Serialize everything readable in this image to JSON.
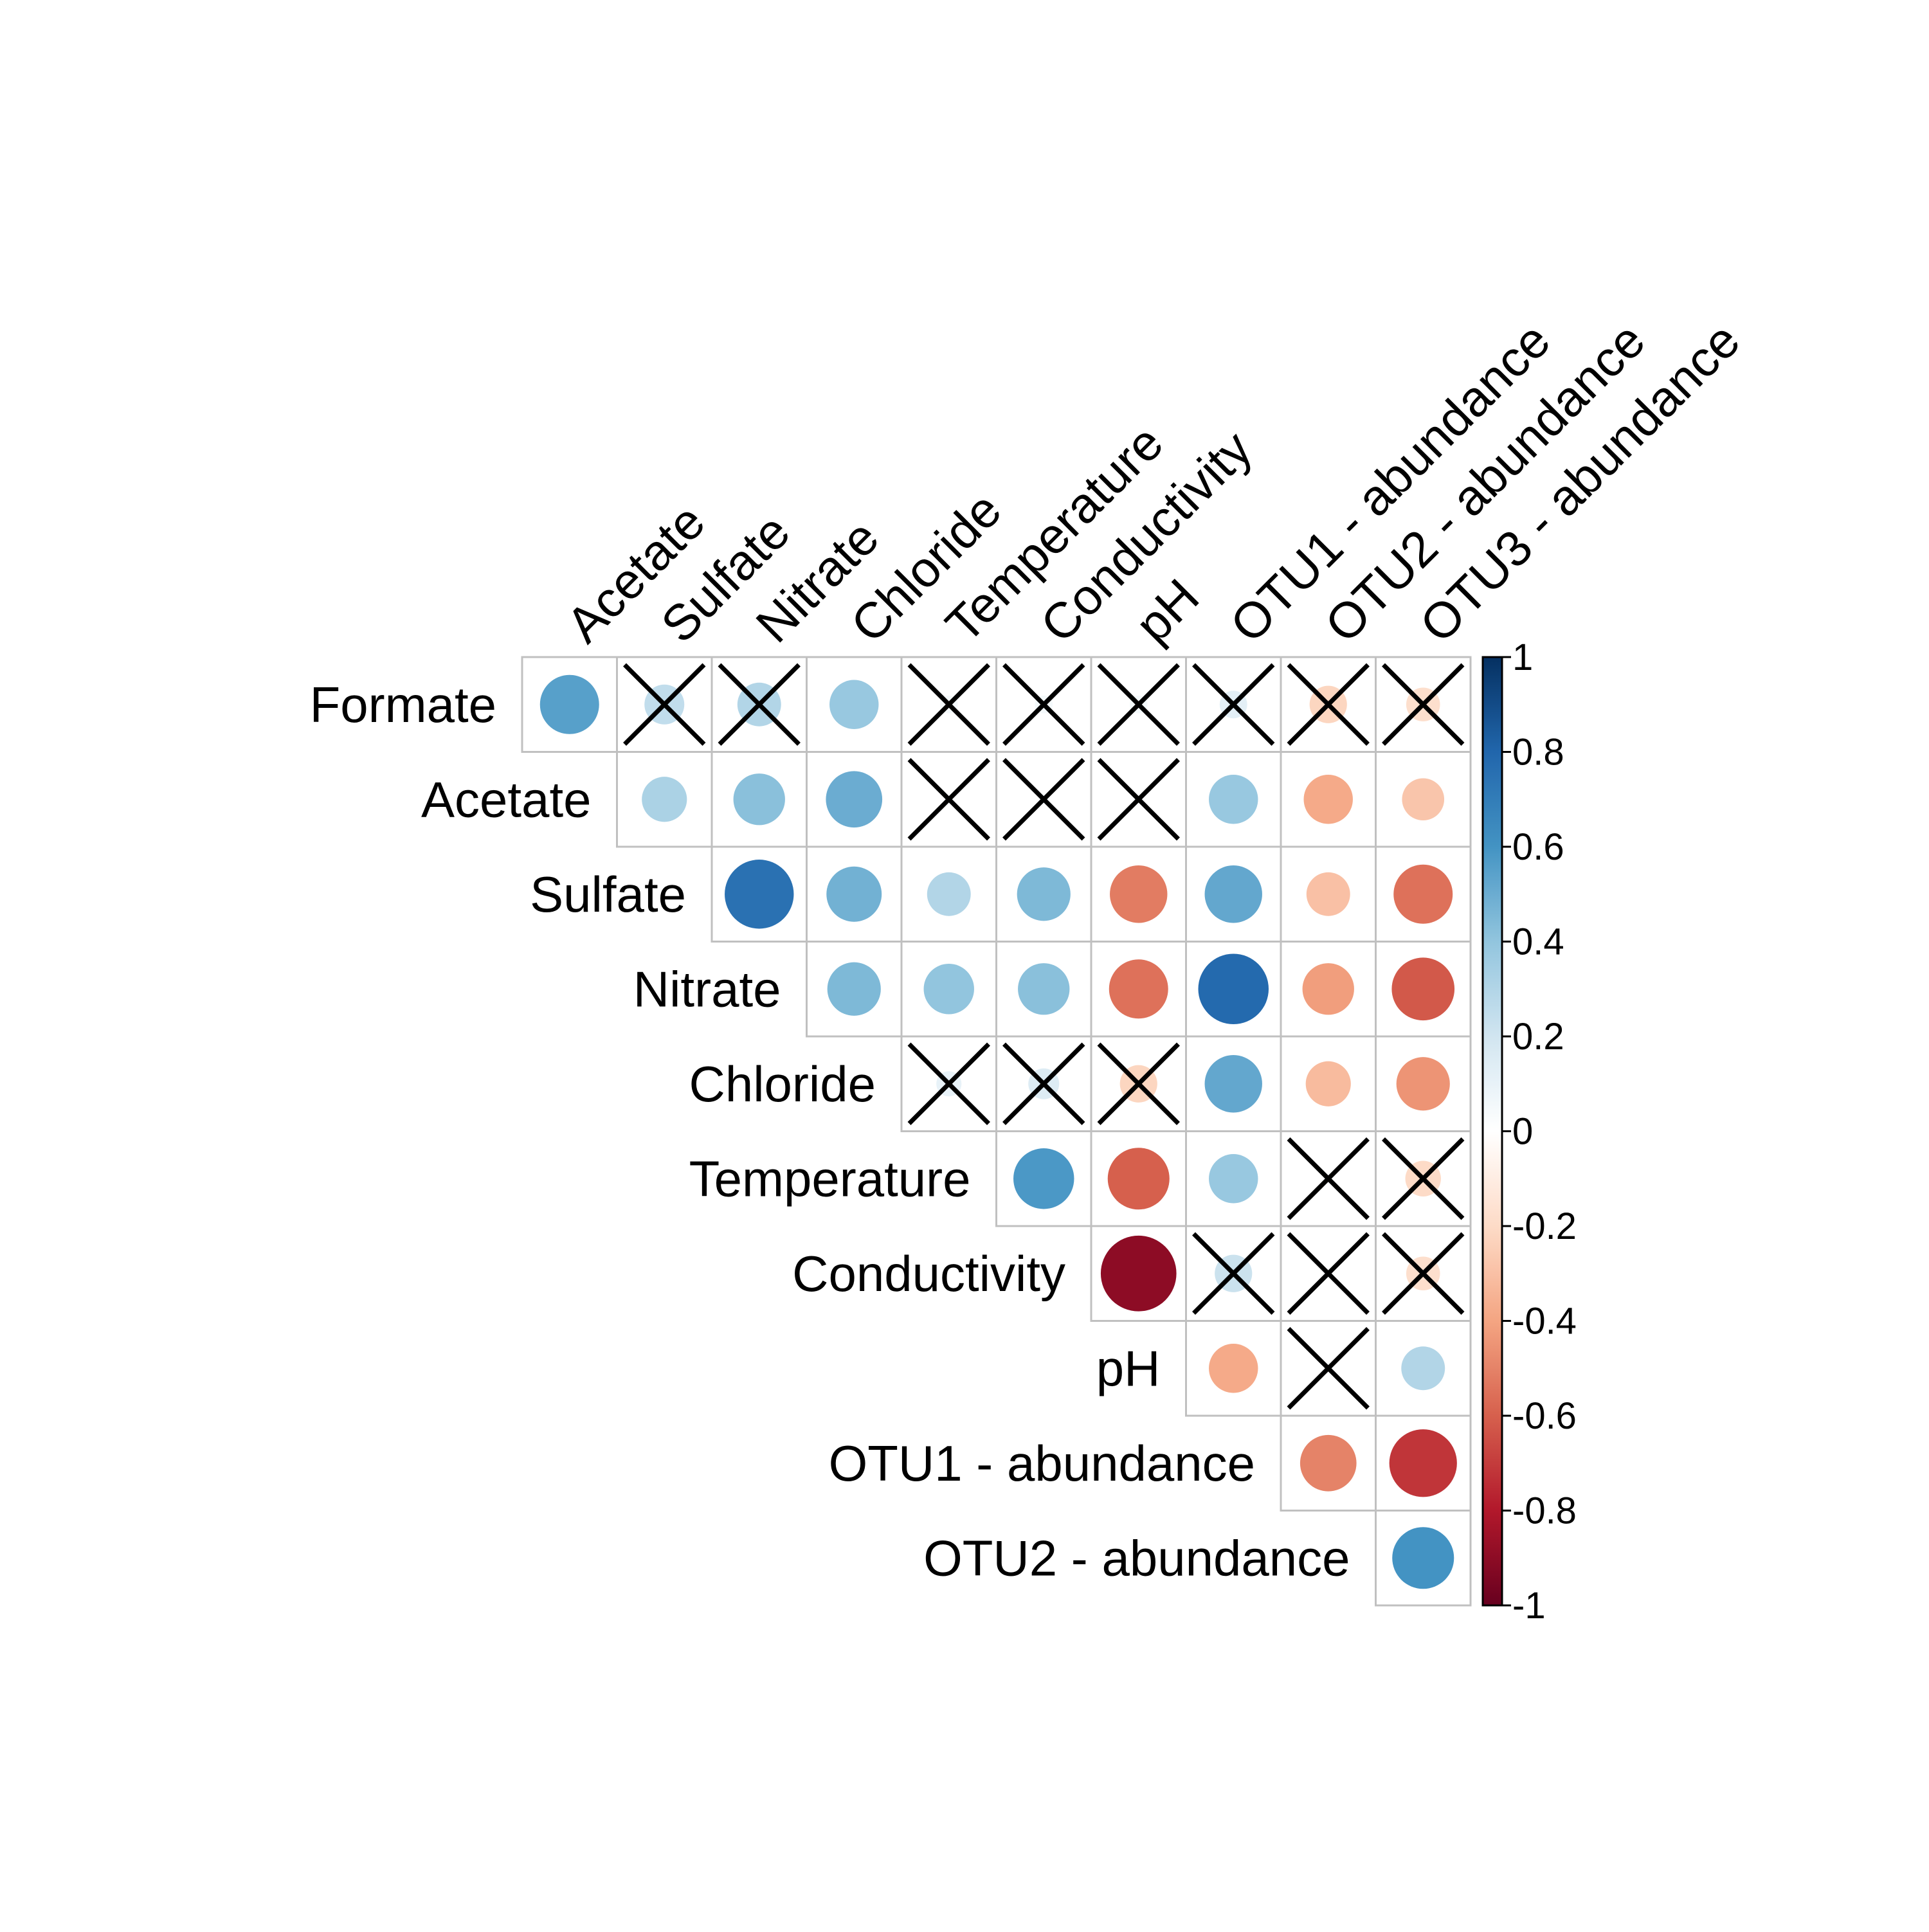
{
  "chart_data": {
    "type": "heatmap",
    "subtype": "correlation-upper-triangle",
    "marker": "circle",
    "title": "",
    "xlabel": "",
    "ylabel": "",
    "row_labels": [
      "Formate",
      "Acetate",
      "Sulfate",
      "Nitrate",
      "Chloride",
      "Temperature",
      "Conductivity",
      "pH",
      "OTU1 - abundance",
      "OTU2 - abundance"
    ],
    "col_labels": [
      "Acetate",
      "Sulfate",
      "Nitrate",
      "Chloride",
      "Temperature",
      "Conductivity",
      "pH",
      "OTU1 - abundance",
      "OTU2 - abundance",
      "OTU3 - abundance"
    ],
    "values": [
      [
        0.55,
        0.25,
        0.3,
        0.38,
        0.05,
        0.05,
        0.05,
        0.12,
        -0.22,
        -0.18
      ],
      [
        null,
        0.32,
        0.42,
        0.5,
        0.02,
        0.02,
        0.02,
        0.38,
        -0.38,
        -0.28
      ],
      [
        null,
        null,
        0.75,
        0.48,
        0.3,
        0.45,
        -0.52,
        0.52,
        -0.3,
        -0.55
      ],
      [
        null,
        null,
        null,
        0.45,
        0.4,
        0.42,
        -0.55,
        0.78,
        -0.42,
        -0.62
      ],
      [
        null,
        null,
        null,
        null,
        0.1,
        0.15,
        -0.22,
        0.52,
        -0.32,
        -0.45
      ],
      [
        null,
        null,
        null,
        null,
        null,
        0.58,
        -0.6,
        0.38,
        0.02,
        -0.2
      ],
      [
        null,
        null,
        null,
        null,
        null,
        null,
        -0.9,
        0.22,
        0.02,
        -0.18
      ],
      [
        null,
        null,
        null,
        null,
        null,
        null,
        null,
        -0.38,
        0.02,
        0.3
      ],
      [
        null,
        null,
        null,
        null,
        null,
        null,
        null,
        null,
        -0.5,
        -0.72
      ],
      [
        null,
        null,
        null,
        null,
        null,
        null,
        null,
        null,
        null,
        0.6
      ]
    ],
    "non_significant": [
      [
        0,
        1
      ],
      [
        0,
        2
      ],
      [
        0,
        4
      ],
      [
        0,
        5
      ],
      [
        0,
        6
      ],
      [
        0,
        7
      ],
      [
        0,
        8
      ],
      [
        0,
        9
      ],
      [
        1,
        4
      ],
      [
        1,
        5
      ],
      [
        1,
        6
      ],
      [
        4,
        4
      ],
      [
        4,
        5
      ],
      [
        4,
        6
      ],
      [
        5,
        8
      ],
      [
        5,
        9
      ],
      [
        6,
        7
      ],
      [
        6,
        8
      ],
      [
        6,
        9
      ],
      [
        7,
        8
      ]
    ],
    "colorbar": {
      "ticks": [
        "1",
        "0.8",
        "0.6",
        "0.4",
        "0.2",
        "0",
        "-0.2",
        "-0.4",
        "-0.6",
        "-0.8",
        "-1"
      ],
      "tick_values": [
        1,
        0.8,
        0.6,
        0.4,
        0.2,
        0,
        -0.2,
        -0.4,
        -0.6,
        -0.8,
        -1
      ],
      "range": [
        -1,
        1
      ],
      "placement": "right"
    },
    "colors": {
      "scale": [
        "#67001F",
        "#B2182B",
        "#D6604D",
        "#F4A582",
        "#FDDBC7",
        "#FFFFFF",
        "#D1E5F0",
        "#92C5DE",
        "#4393C3",
        "#2166AC",
        "#053061"
      ],
      "grid_line": "#C0C0C0",
      "cross": "#000000"
    }
  }
}
